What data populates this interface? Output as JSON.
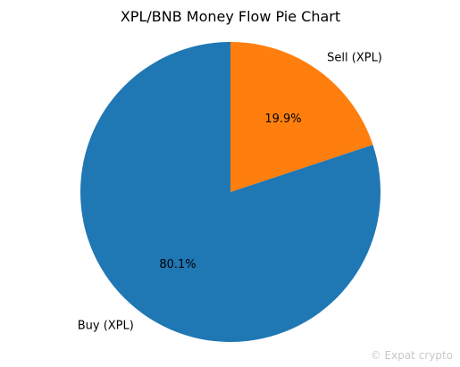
{
  "chart_data": {
    "type": "pie",
    "title": "XPL/BNB Money Flow Pie Chart",
    "slices": [
      {
        "label": "Buy (XPL)",
        "value": 80.1,
        "pct_label": "80.1%",
        "color": "#1f77b4"
      },
      {
        "label": "Sell (XPL)",
        "value": 19.9,
        "pct_label": "19.9%",
        "color": "#ff7f0e"
      }
    ],
    "start_angle_deg": 90,
    "direction": "counterclockwise"
  },
  "watermark": {
    "text": "© Expat crypto"
  }
}
